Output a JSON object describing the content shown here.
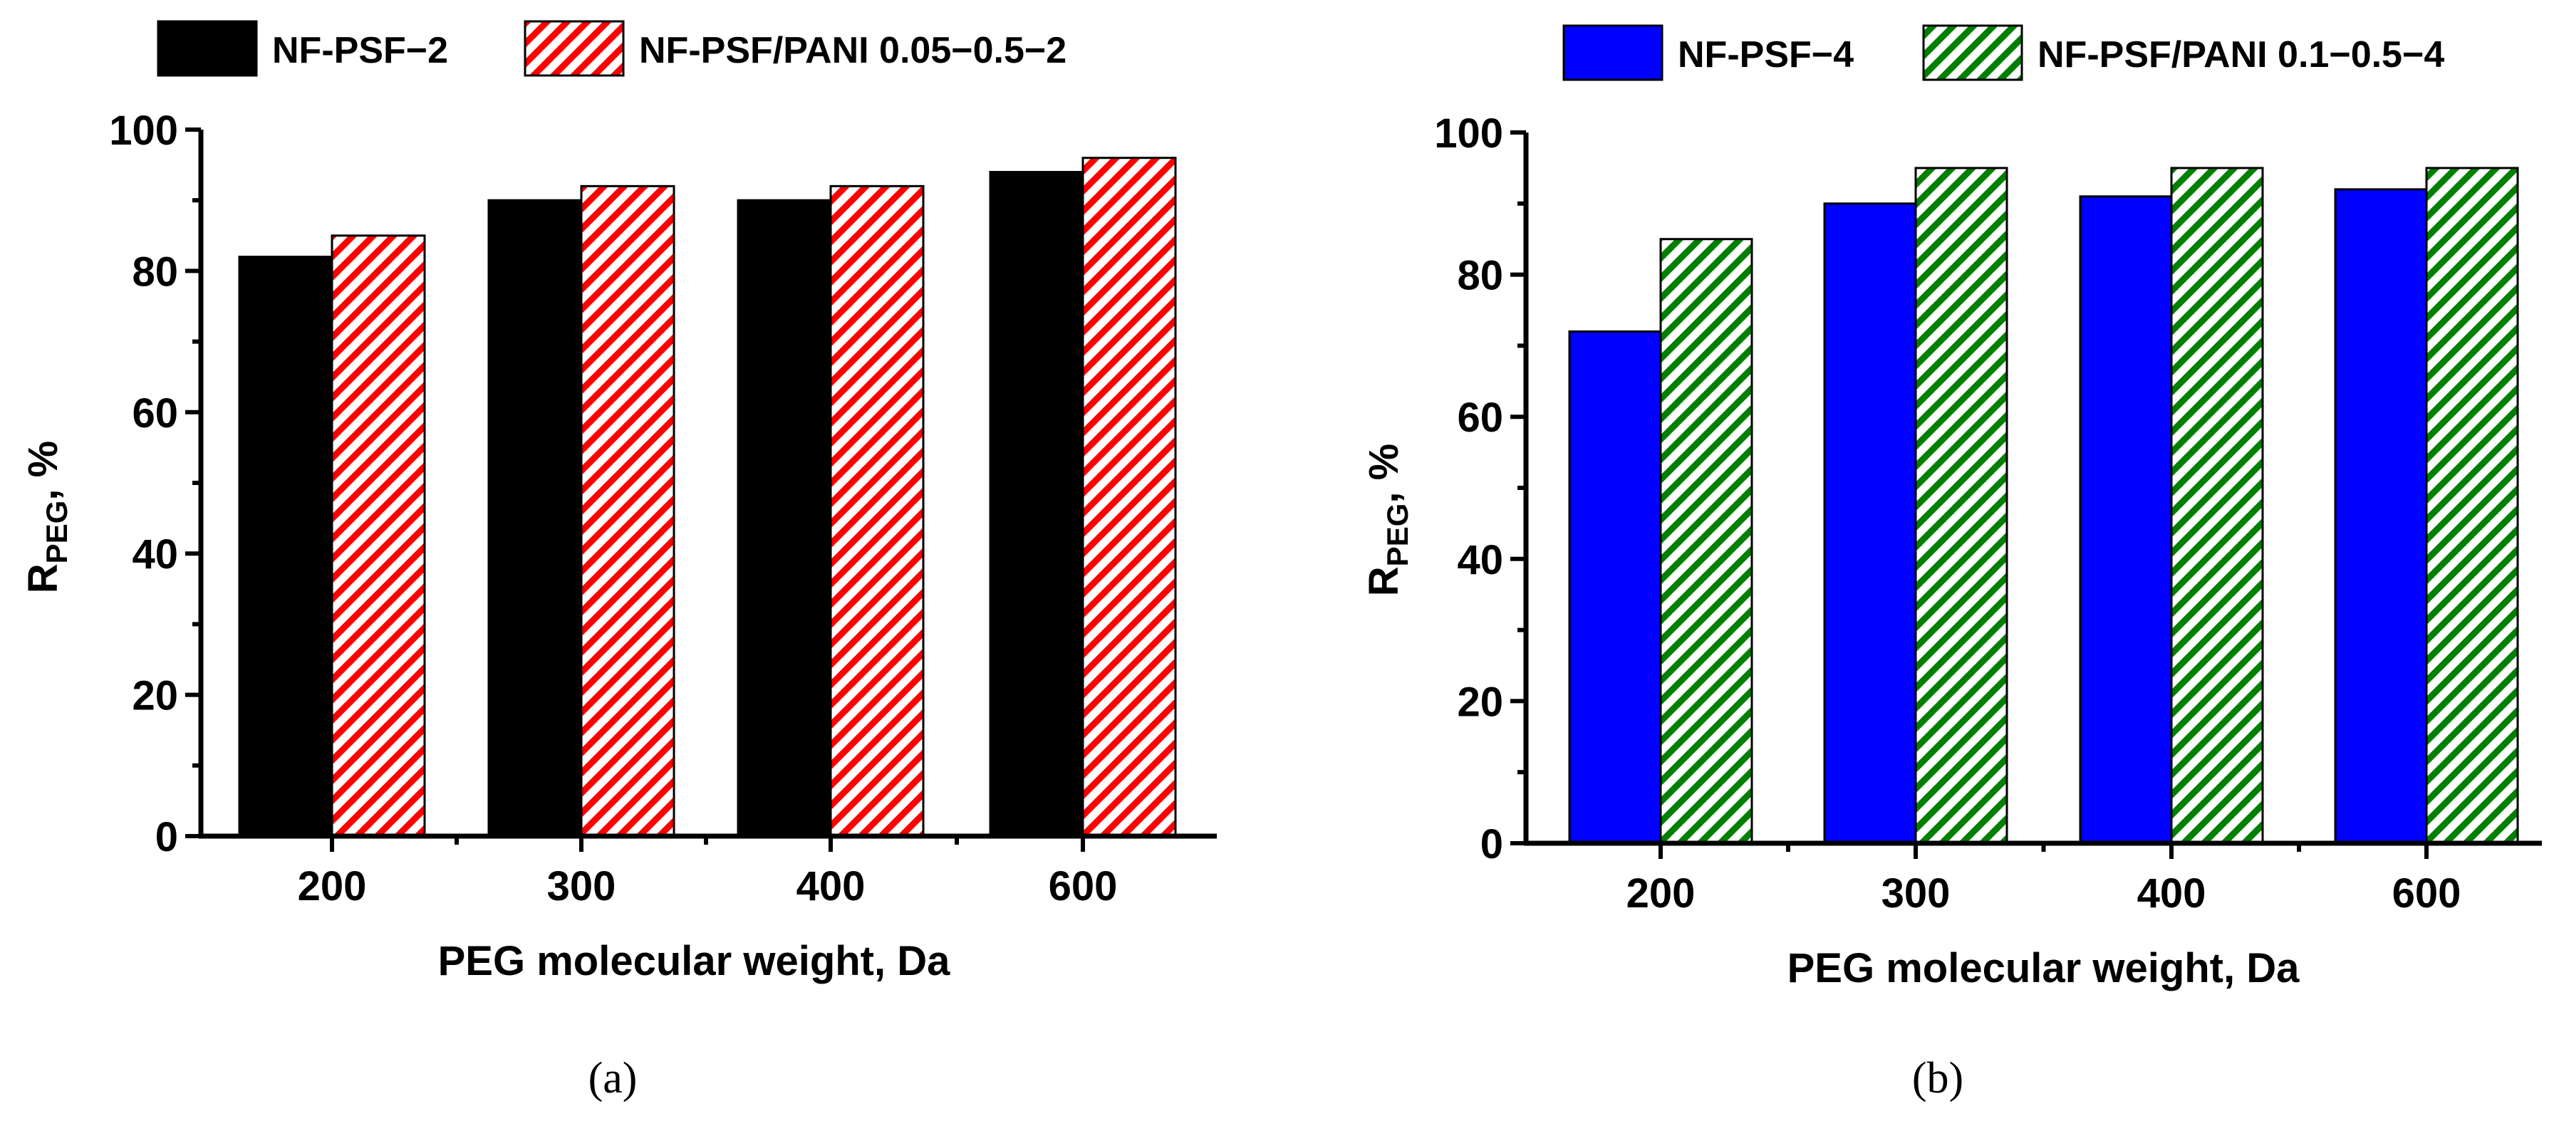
{
  "chart_data": [
    {
      "type": "bar",
      "panel": "(a)",
      "categories": [
        "200",
        "300",
        "400",
        "600"
      ],
      "series": [
        {
          "name": "NF-PSF−2",
          "values": [
            82,
            90,
            90,
            94
          ],
          "color": "#000000",
          "pattern": "solid"
        },
        {
          "name": "NF-PSF/PANI 0.05−0.5−2",
          "values": [
            85,
            92,
            92,
            96
          ],
          "color": "#ff0000",
          "pattern": "hatch"
        }
      ],
      "xlabel": "PEG molecular weight, Da",
      "ylabel_main": "R",
      "ylabel_sub": "PEG",
      "ylabel_tail": ", %",
      "ylim": [
        0,
        100
      ],
      "yticks": [
        "0",
        "20",
        "40",
        "60",
        "80",
        "100"
      ],
      "legend_position": "top"
    },
    {
      "type": "bar",
      "panel": "(b)",
      "categories": [
        "200",
        "300",
        "400",
        "600"
      ],
      "series": [
        {
          "name": "NF-PSF−4",
          "values": [
            72,
            90,
            91,
            92
          ],
          "color": "#0000ff",
          "pattern": "solid"
        },
        {
          "name": "NF-PSF/PANI 0.1−0.5−4",
          "values": [
            85,
            95,
            95,
            95
          ],
          "color": "#008000",
          "pattern": "hatch"
        }
      ],
      "xlabel": "PEG molecular weight, Da",
      "ylabel_main": "R",
      "ylabel_sub": "PEG",
      "ylabel_tail": ", %",
      "ylim": [
        0,
        100
      ],
      "yticks": [
        "0",
        "20",
        "40",
        "60",
        "80",
        "100"
      ],
      "legend_position": "top"
    }
  ]
}
